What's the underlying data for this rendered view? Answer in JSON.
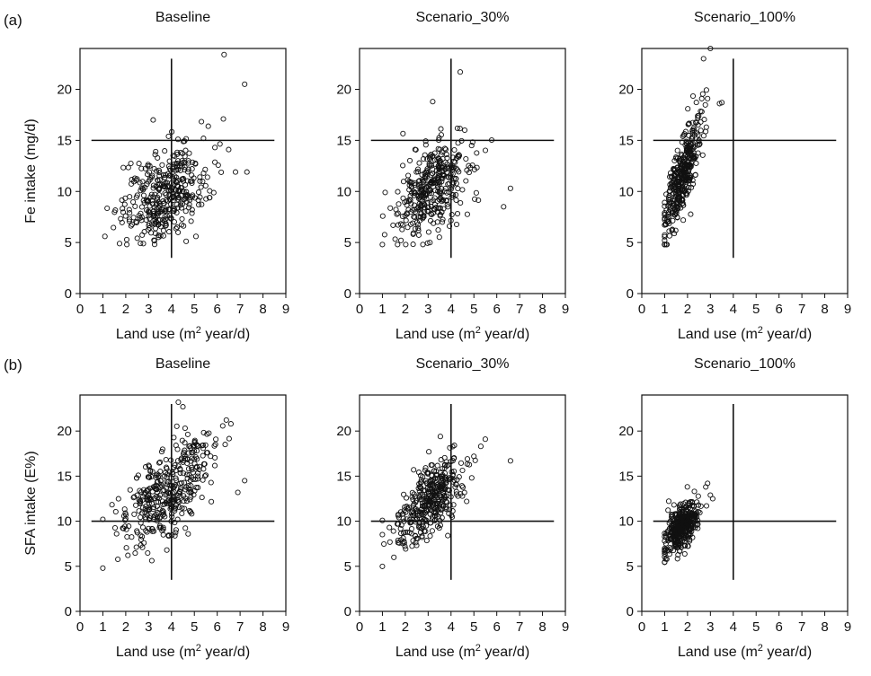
{
  "panel_labels": [
    "(a)",
    "(b)"
  ],
  "chart_data": [
    {
      "type": "scatter",
      "row": "a",
      "title": "Baseline",
      "xlabel": "Land use (m2 year/d)",
      "ylabel": "Fe intake (mg/d)",
      "xlim": [
        0,
        9
      ],
      "ylim": [
        0,
        24
      ],
      "xticks": [
        0,
        1,
        2,
        3,
        4,
        5,
        6,
        7,
        8,
        9
      ],
      "yticks": [
        0,
        5,
        10,
        15,
        20
      ],
      "ref_x": 4,
      "ref_y": 15,
      "dist": {
        "center": [
          3.7,
          9.7
        ],
        "sd": [
          0.95,
          2.3
        ],
        "corr": 0.35,
        "n": 380,
        "outliers": [
          [
            6.3,
            23.4
          ],
          [
            7.2,
            20.5
          ],
          [
            7.3,
            11.9
          ],
          [
            6.8,
            11.9
          ],
          [
            6.5,
            14.1
          ],
          [
            3.2,
            17.0
          ]
        ]
      }
    },
    {
      "type": "scatter",
      "row": "a",
      "title": "Scenario_30%",
      "xlabel": "Land use (m2 year/d)",
      "ylabel": "",
      "xlim": [
        0,
        9
      ],
      "ylim": [
        0,
        24
      ],
      "xticks": [
        0,
        1,
        2,
        3,
        4,
        5,
        6,
        7,
        8,
        9
      ],
      "yticks": [
        0,
        5,
        10,
        15,
        20
      ],
      "ref_x": 4,
      "ref_y": 15,
      "dist": {
        "center": [
          3.2,
          10.3
        ],
        "sd": [
          0.8,
          2.4
        ],
        "corr": 0.45,
        "n": 380,
        "outliers": [
          [
            4.4,
            21.7
          ],
          [
            3.2,
            18.8
          ],
          [
            6.3,
            8.5
          ],
          [
            6.6,
            10.3
          ],
          [
            4.9,
            14.5
          ],
          [
            4.6,
            16.0
          ]
        ]
      }
    },
    {
      "type": "scatter",
      "row": "a",
      "title": "Scenario_100%",
      "xlabel": "Land use (m2 year/d)",
      "ylabel": "",
      "xlim": [
        0,
        9
      ],
      "ylim": [
        0,
        24
      ],
      "xticks": [
        0,
        1,
        2,
        3,
        4,
        5,
        6,
        7,
        8,
        9
      ],
      "yticks": [
        0,
        5,
        10,
        15,
        20
      ],
      "ref_x": 4,
      "ref_y": 15,
      "dist": {
        "center": [
          1.75,
          11.5
        ],
        "sd": [
          0.42,
          2.9
        ],
        "corr": 0.8,
        "n": 380,
        "outliers": [
          [
            3.0,
            24.0
          ],
          [
            2.7,
            23.0
          ],
          [
            3.4,
            18.6
          ],
          [
            3.5,
            18.7
          ],
          [
            1.0,
            4.8
          ]
        ]
      }
    },
    {
      "type": "scatter",
      "row": "b",
      "title": "Baseline",
      "xlabel": "Land use (m2 year/d)",
      "ylabel": "SFA intake (E%)",
      "xlim": [
        0,
        9
      ],
      "ylim": [
        0,
        24
      ],
      "xticks": [
        0,
        1,
        2,
        3,
        4,
        5,
        6,
        7,
        8,
        9
      ],
      "yticks": [
        0,
        5,
        10,
        15,
        20
      ],
      "ref_x": 4,
      "ref_y": 10,
      "dist": {
        "center": [
          3.9,
          13.6
        ],
        "sd": [
          1.0,
          3.1
        ],
        "corr": 0.6,
        "n": 380,
        "outliers": [
          [
            4.3,
            23.2
          ],
          [
            4.5,
            22.7
          ],
          [
            6.6,
            20.8
          ],
          [
            7.2,
            14.5
          ],
          [
            1.6,
            8.6
          ],
          [
            6.9,
            13.2
          ]
        ]
      }
    },
    {
      "type": "scatter",
      "row": "b",
      "title": "Scenario_30%",
      "xlabel": "Land use (m2 year/d)",
      "ylabel": "",
      "xlim": [
        0,
        9
      ],
      "ylim": [
        0,
        24
      ],
      "xticks": [
        0,
        1,
        2,
        3,
        4,
        5,
        6,
        7,
        8,
        9
      ],
      "yticks": [
        0,
        5,
        10,
        15,
        20
      ],
      "ref_x": 4,
      "ref_y": 10,
      "dist": {
        "center": [
          3.1,
          12.3
        ],
        "sd": [
          0.75,
          2.4
        ],
        "corr": 0.6,
        "n": 380,
        "outliers": [
          [
            5.5,
            19.1
          ],
          [
            5.3,
            18.3
          ],
          [
            6.6,
            16.7
          ],
          [
            1.5,
            6.0
          ],
          [
            5.0,
            17.2
          ]
        ]
      }
    },
    {
      "type": "scatter",
      "row": "b",
      "title": "Scenario_100%",
      "xlabel": "Land use (m2 year/d)",
      "ylabel": "",
      "xlim": [
        0,
        9
      ],
      "ylim": [
        0,
        24
      ],
      "xticks": [
        0,
        1,
        2,
        3,
        4,
        5,
        6,
        7,
        8,
        9
      ],
      "yticks": [
        0,
        5,
        10,
        15,
        20
      ],
      "ref_x": 4,
      "ref_y": 10,
      "dist": {
        "center": [
          1.75,
          9.4
        ],
        "sd": [
          0.38,
          1.4
        ],
        "corr": 0.55,
        "n": 380,
        "outliers": [
          [
            2.8,
            13.8
          ],
          [
            3.0,
            12.9
          ],
          [
            3.1,
            12.5
          ],
          [
            2.3,
            13.3
          ]
        ]
      }
    }
  ]
}
